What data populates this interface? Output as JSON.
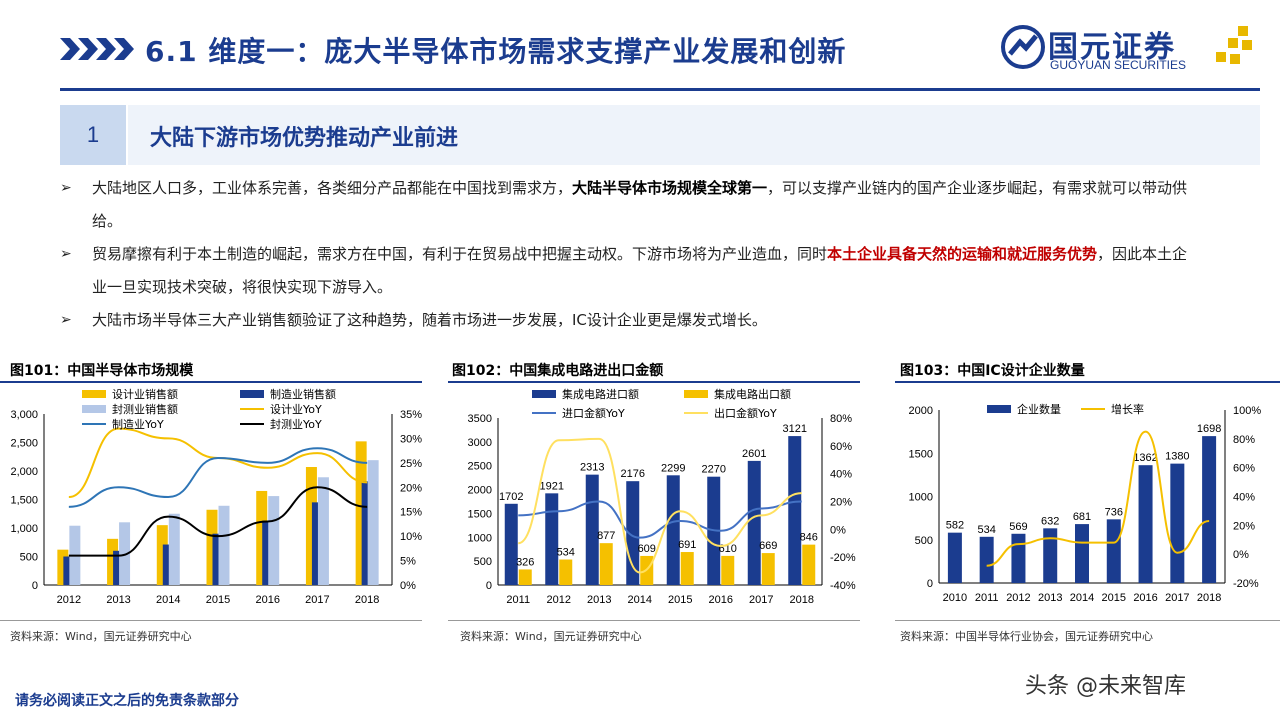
{
  "header": {
    "title": "6.1 维度一：庞大半导体市场需求支撑产业发展和创新",
    "logo_cn": "国元证券",
    "logo_en": "GUOYUAN SECURITIES",
    "accent_color": "#1b3c8f",
    "chevron_color": "#1b3c8f"
  },
  "section": {
    "number": "1",
    "title": "大陆下游市场优势推动产业前进"
  },
  "bullets": [
    {
      "marker": "➢",
      "pre": "大陆地区人口多，工业体系完善，各类细分产品都能在中国找到需求方，",
      "strong": "大陆半导体市场规模全球第一",
      "post": "，可以支撑产业链内的国产企业逐步崛起，有需求就可以带动供给。"
    },
    {
      "marker": "➢",
      "pre": "贸易摩擦有利于本土制造的崛起，需求方在中国，有利于在贸易战中把握主动权。下游市场将为产业造血，同时",
      "red": "本土企业具备天然的运输和就近服务优势",
      "post": "，因此本土企业一旦实现技术突破，将很快实现下游导入。"
    },
    {
      "marker": "➢",
      "pre": "大陆市场半导体三大产业销售额验证了这种趋势，随着市场进一步发展，IC设计企业更是爆发式增长。"
    }
  ],
  "figures": {
    "fig101_title": "图101：中国半导体市场规模",
    "fig102_title": "图102：中国集成电路进出口金额",
    "fig103_title": "图103：中国IC设计企业数量",
    "fig101_source": "资料来源：Wind，国元证券研究中心",
    "fig102_source": "资料来源：Wind，国元证券研究中心",
    "fig103_source": "资料来源：中国半导体行业协会，国元证券研究中心"
  },
  "footer": {
    "disclaimer": "请务必阅读正文之后的免责条款部分",
    "watermark": "头条 @未来智库"
  },
  "chart_data": [
    {
      "type": "bar",
      "categories": [
        "2012",
        "2013",
        "2014",
        "2015",
        "2016",
        "2017",
        "2018"
      ],
      "series": [
        {
          "name": "设计业销售额",
          "kind": "bar",
          "axis": "left",
          "color": "#f5c000",
          "values": [
            620,
            810,
            1050,
            1320,
            1650,
            2070,
            2520
          ]
        },
        {
          "name": "制造业销售额",
          "kind": "bar",
          "axis": "left",
          "color": "#1b3c8f",
          "values": [
            500,
            600,
            710,
            900,
            1130,
            1450,
            1820
          ]
        },
        {
          "name": "封测业销售额",
          "kind": "bar",
          "axis": "left",
          "color": "#b4c7e7",
          "values": [
            1040,
            1100,
            1250,
            1390,
            1560,
            1890,
            2190
          ]
        },
        {
          "name": "设计业YoY",
          "kind": "line",
          "axis": "right",
          "color": "#f5c000",
          "values": [
            18,
            32,
            30,
            26,
            24,
            27,
            21
          ]
        },
        {
          "name": "制造业YoY",
          "kind": "line",
          "axis": "right",
          "color": "#2e75b6",
          "values": [
            16,
            20,
            18,
            26,
            25,
            28,
            25
          ]
        },
        {
          "name": "封测业YoY",
          "kind": "line",
          "axis": "right",
          "color": "#000000",
          "values": [
            6,
            6,
            14,
            10,
            13,
            20,
            16
          ]
        }
      ],
      "ylim_left": [
        0,
        3000
      ],
      "yticks_left": [
        "0",
        "500",
        "1,000",
        "1,500",
        "2,000",
        "2,500",
        "3,000"
      ],
      "ylim_right": [
        0,
        35
      ],
      "yticks_right": [
        "0%",
        "5%",
        "10%",
        "15%",
        "20%",
        "25%",
        "30%",
        "35%"
      ]
    },
    {
      "type": "bar",
      "categories": [
        "2011",
        "2012",
        "2013",
        "2014",
        "2015",
        "2016",
        "2017",
        "2018"
      ],
      "series": [
        {
          "name": "集成电路进口额",
          "kind": "bar",
          "axis": "left",
          "color": "#1b3c8f",
          "values": [
            1702,
            1921,
            2313,
            2176,
            2299,
            2270,
            2601,
            3121
          ]
        },
        {
          "name": "集成电路出口额",
          "kind": "bar",
          "axis": "left",
          "color": "#f5c000",
          "values": [
            326,
            534,
            877,
            609,
            691,
            610,
            669,
            846
          ]
        },
        {
          "name": "进口金额YoY",
          "kind": "line",
          "axis": "right",
          "color": "#4472c4",
          "values": [
            10,
            13,
            20,
            -6,
            6,
            -1,
            15,
            20
          ]
        },
        {
          "name": "出口金额YoY",
          "kind": "line",
          "axis": "right",
          "color": "#ffe060",
          "values": [
            -10,
            64,
            65,
            -31,
            13,
            -12,
            10,
            26
          ]
        }
      ],
      "ylim_left": [
        0,
        3500
      ],
      "yticks_left": [
        "0",
        "500",
        "1000",
        "1500",
        "2000",
        "2500",
        "3000",
        "3500"
      ],
      "ylim_right": [
        -40,
        80
      ],
      "yticks_right": [
        "-40%",
        "-20%",
        "0%",
        "20%",
        "40%",
        "60%",
        "80%"
      ]
    },
    {
      "type": "bar",
      "categories": [
        "2010",
        "2011",
        "2012",
        "2013",
        "2014",
        "2015",
        "2016",
        "2017",
        "2018"
      ],
      "series": [
        {
          "name": "企业数量",
          "kind": "bar",
          "axis": "left",
          "color": "#1b3c8f",
          "values": [
            582,
            534,
            569,
            632,
            681,
            736,
            1362,
            1380,
            1698
          ]
        },
        {
          "name": "增长率",
          "kind": "line",
          "axis": "right",
          "color": "#f5c000",
          "values": [
            null,
            -8,
            7,
            11,
            8,
            8,
            85,
            1,
            23
          ]
        }
      ],
      "ylim_left": [
        0,
        2000
      ],
      "yticks_left": [
        "0",
        "500",
        "1000",
        "1500",
        "2000"
      ],
      "ylim_right": [
        -20,
        100
      ],
      "yticks_right": [
        "-20%",
        "0%",
        "20%",
        "40%",
        "60%",
        "80%",
        "100%"
      ]
    }
  ]
}
